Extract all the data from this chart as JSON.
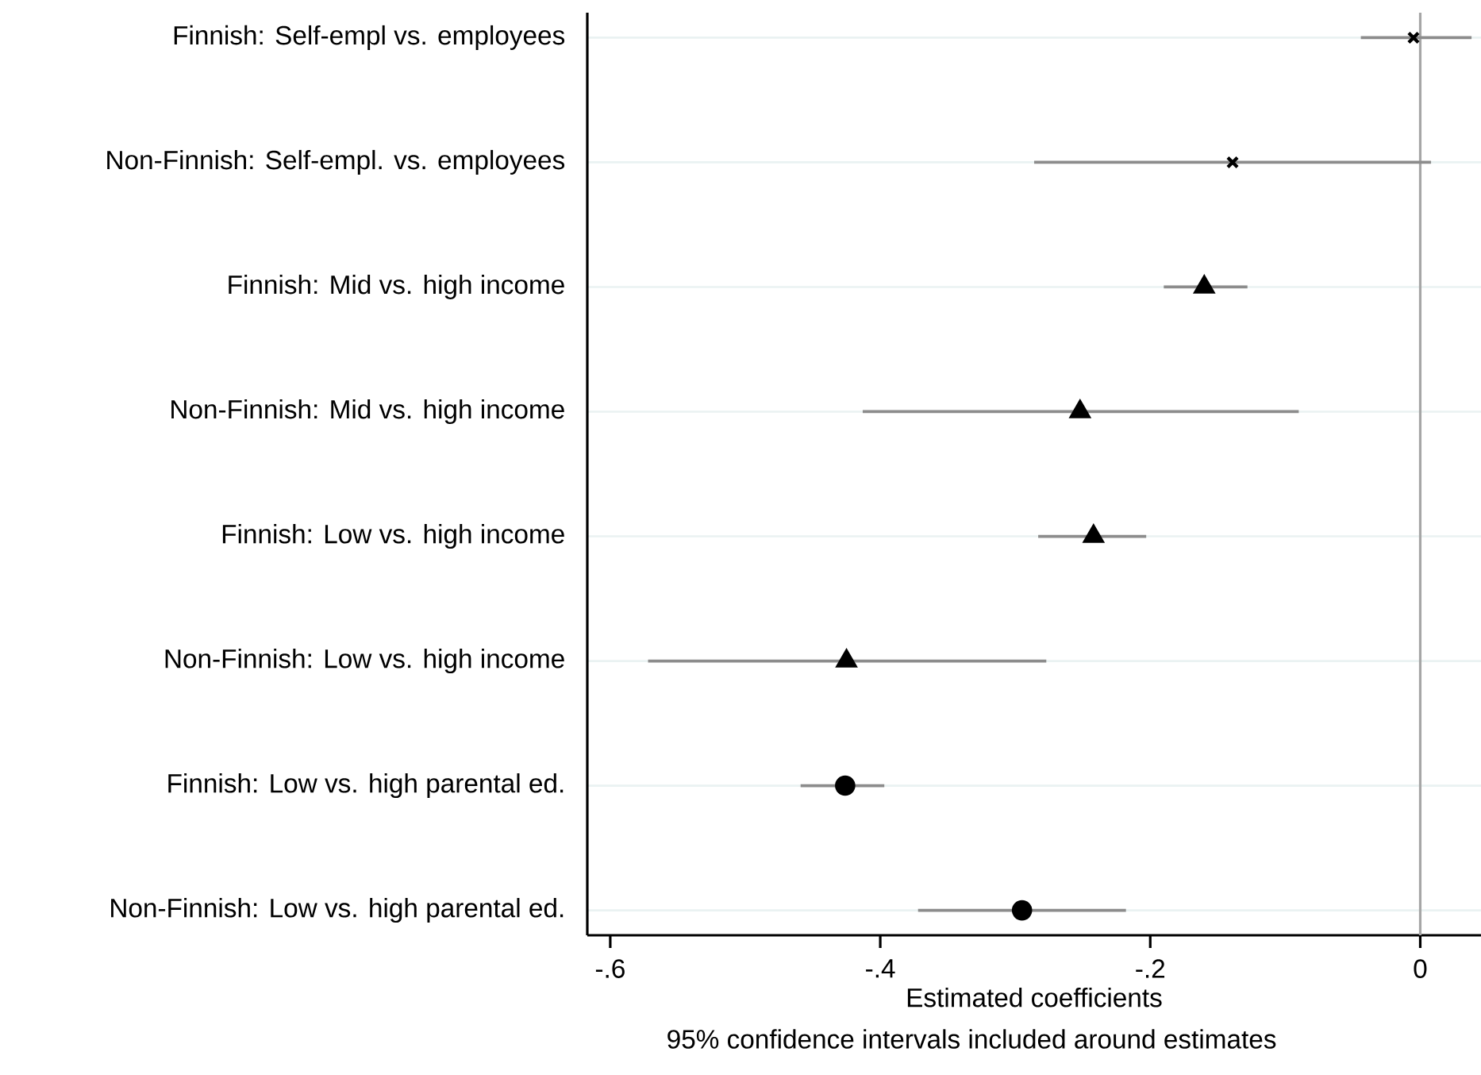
{
  "chart_data": {
    "type": "scatter",
    "orientation": "horizontal",
    "xlabel": "Estimated coefficients",
    "annotations": [
      "95% confidence intervals included around estimates"
    ],
    "categories": [
      "Finnish: Self-empl vs. employees",
      "Non-Finnish: Self-empl. vs. employees",
      "Finnish: Mid vs. high income",
      "Non-Finnish: Mid vs. high income",
      "Finnish: Low vs. high income",
      "Non-Finnish: Low vs. high income",
      "Finnish: Low vs. high parental ed.",
      "Non-Finnish: Low vs. high parental ed."
    ],
    "series": [
      {
        "color": "#000000",
        "marker": "cross",
        "values": [
          -0.005,
          -0.139,
          null,
          null,
          null,
          null,
          null,
          null
        ],
        "errors": [
          [
            -0.044,
            0.038
          ],
          [
            -0.286,
            0.008
          ],
          null,
          null,
          null,
          null,
          null,
          null
        ]
      },
      {
        "color": "#000000",
        "marker": "triangle",
        "values": [
          null,
          null,
          -0.16,
          -0.252,
          -0.242,
          -0.425,
          null,
          null
        ],
        "errors": [
          null,
          null,
          [
            -0.19,
            -0.128
          ],
          [
            -0.413,
            -0.09
          ],
          [
            -0.283,
            -0.203
          ],
          [
            -0.572,
            -0.277
          ],
          null,
          null
        ]
      },
      {
        "color": "#000000",
        "marker": "circle",
        "values": [
          null,
          null,
          null,
          null,
          null,
          null,
          -0.426,
          -0.295
        ],
        "errors": [
          null,
          null,
          null,
          null,
          null,
          null,
          [
            -0.459,
            -0.397
          ],
          [
            -0.372,
            -0.218
          ]
        ]
      }
    ],
    "xlim": [
      -0.617,
      0.045
    ],
    "xticks": [
      {
        "value": -0.6,
        "label": "-.6"
      },
      {
        "value": -0.4,
        "label": "-.4"
      },
      {
        "value": -0.2,
        "label": "-.2"
      },
      0
    ],
    "ref_lines": [
      {
        "axis": "x",
        "value": 0,
        "color": "#a6a6a6"
      }
    ],
    "grid": "y"
  }
}
